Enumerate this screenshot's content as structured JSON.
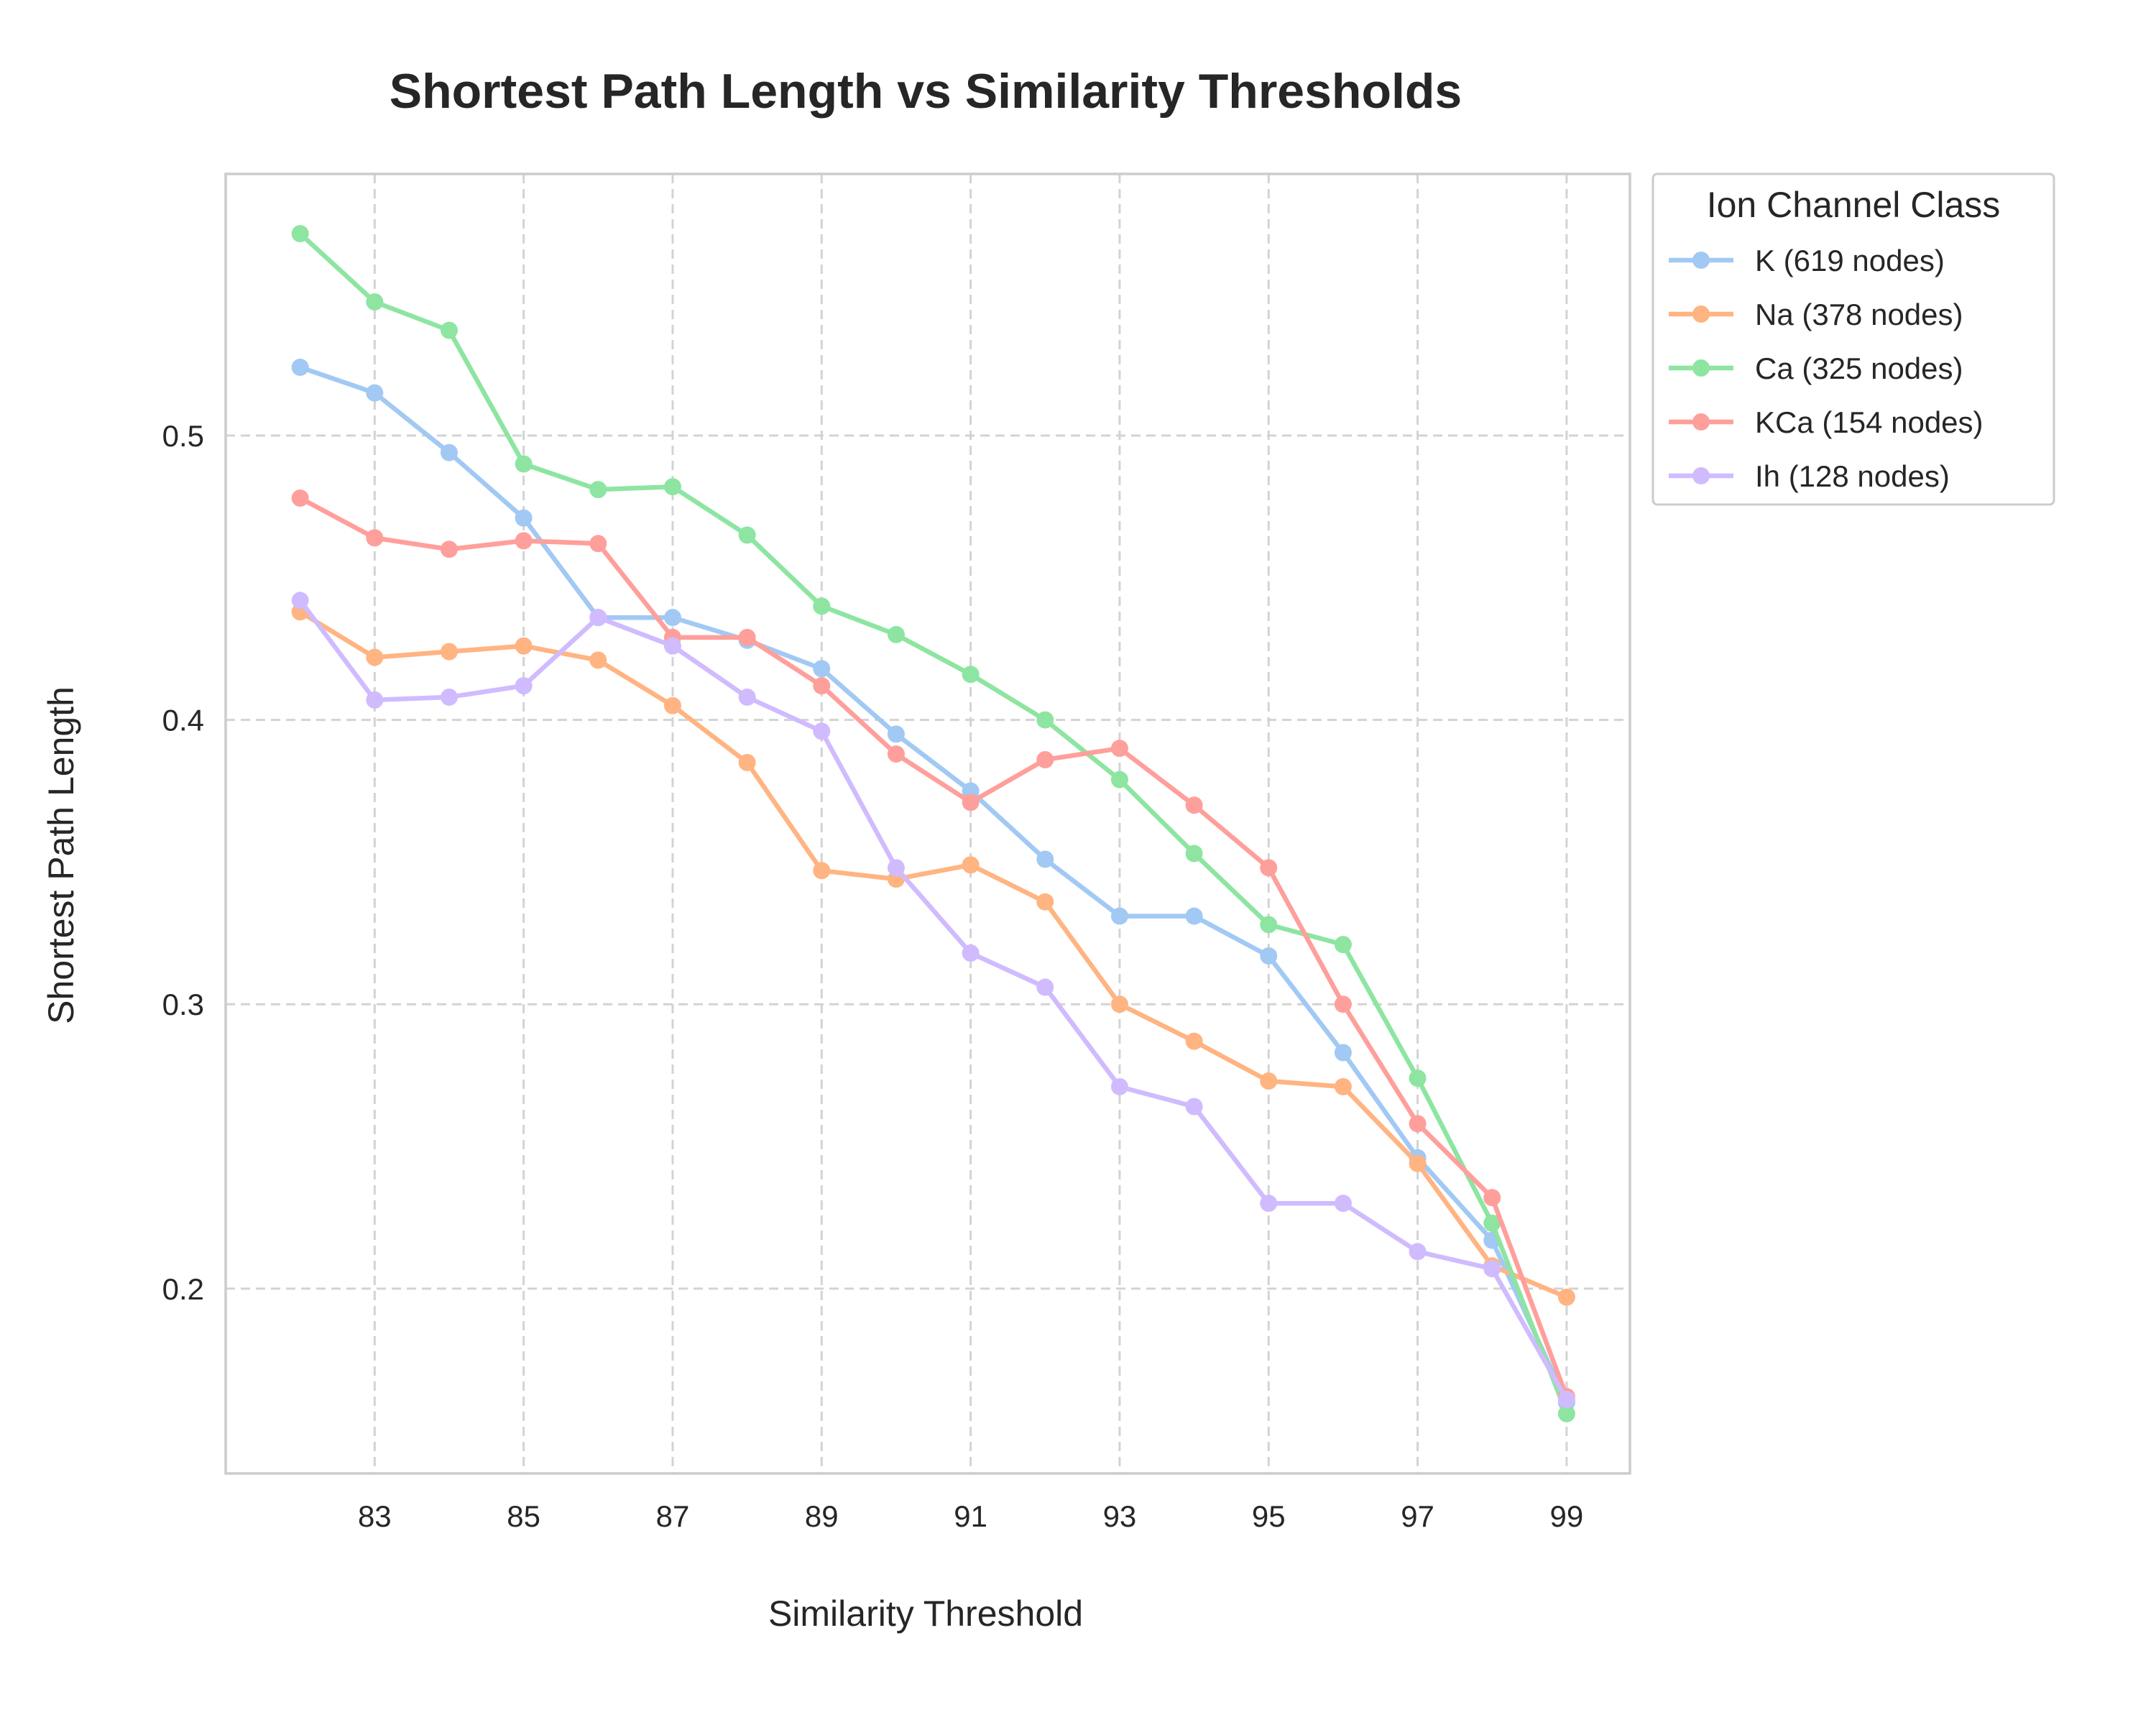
{
  "chart_data": {
    "type": "line",
    "title": "Shortest Path Length vs Similarity Thresholds",
    "xlabel": "Similarity Threshold",
    "ylabel": "Shortest Path Length",
    "x": [
      82,
      83,
      84,
      85,
      86,
      87,
      88,
      89,
      90,
      91,
      92,
      93,
      94,
      95,
      96,
      97,
      98,
      99
    ],
    "xticks": [
      83,
      85,
      87,
      89,
      91,
      93,
      95,
      97,
      99
    ],
    "yticks": [
      0.2,
      0.3,
      0.4,
      0.5
    ],
    "ytick_labels": [
      "0.2",
      "0.3",
      "0.4",
      "0.5"
    ],
    "xlim": [
      81.0,
      99.85
    ],
    "ylim": [
      0.135,
      0.592
    ],
    "grid": true,
    "legend_title": "Ion Channel Class",
    "legend_position": "outside-right-top",
    "series": [
      {
        "name": "K (619 nodes)",
        "color": "#a1c9f4",
        "values": [
          0.524,
          0.515,
          0.494,
          0.471,
          0.436,
          0.436,
          0.428,
          0.418,
          0.395,
          0.375,
          0.351,
          0.331,
          0.331,
          0.317,
          0.283,
          0.246,
          0.217,
          0.16
        ]
      },
      {
        "name": "Na (378 nodes)",
        "color": "#ffb482",
        "values": [
          0.438,
          0.422,
          0.424,
          0.426,
          0.421,
          0.405,
          0.385,
          0.347,
          0.344,
          0.349,
          0.336,
          0.3,
          0.287,
          0.273,
          0.271,
          0.244,
          0.208,
          0.197
        ]
      },
      {
        "name": "Ca (325 nodes)",
        "color": "#8de5a1",
        "values": [
          0.571,
          0.547,
          0.537,
          0.49,
          0.481,
          0.482,
          0.465,
          0.44,
          0.43,
          0.416,
          0.4,
          0.379,
          0.353,
          0.328,
          0.321,
          0.274,
          0.223,
          0.156
        ]
      },
      {
        "name": "KCa (154 nodes)",
        "color": "#ff9f9b",
        "values": [
          0.478,
          0.464,
          0.46,
          0.463,
          0.462,
          0.429,
          0.429,
          0.412,
          0.388,
          0.371,
          0.386,
          0.39,
          0.37,
          0.348,
          0.3,
          0.258,
          0.232,
          0.162
        ]
      },
      {
        "name": "Ih (128 nodes)",
        "color": "#d0bbff",
        "values": [
          0.442,
          0.407,
          0.408,
          0.412,
          0.436,
          0.426,
          0.408,
          0.396,
          0.348,
          0.318,
          0.306,
          0.271,
          0.264,
          0.23,
          0.23,
          0.213,
          0.207,
          0.161
        ]
      }
    ]
  }
}
